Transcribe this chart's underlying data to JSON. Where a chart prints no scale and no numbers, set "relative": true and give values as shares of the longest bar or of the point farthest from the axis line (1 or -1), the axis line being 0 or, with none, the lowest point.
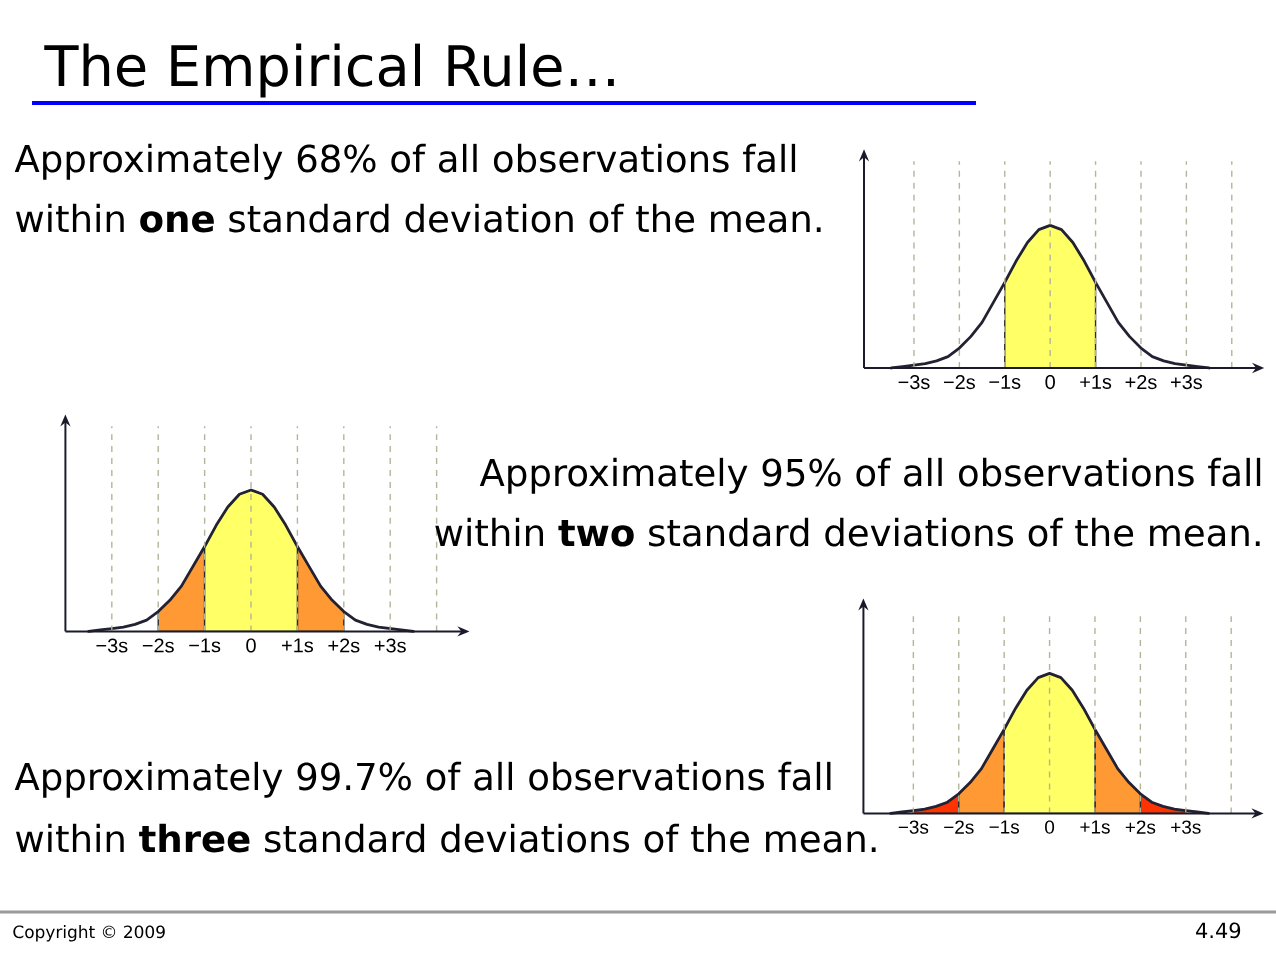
{
  "chart_data": [
    {
      "type": "line",
      "title": "The Empirical Rule…",
      "relative": true,
      "grid": "x",
      "tick_labels": "x",
      "x": [
        -3.5,
        -3.25,
        -3,
        -2.75,
        -2.5,
        -2.25,
        -2,
        -1.75,
        -1.5,
        -1.25,
        -1,
        -0.75,
        -0.5,
        -0.25,
        0,
        0.25,
        0.5,
        0.75,
        1,
        1.25,
        1.5,
        1.75,
        2,
        2.25,
        2.5,
        2.75,
        3,
        3.25,
        3.5
      ],
      "xlim": [
        -4.1,
        4.45
      ],
      "xticks": [
        {
          "value": -3,
          "label": "−3s"
        },
        {
          "value": -2,
          "label": "−2s"
        },
        {
          "value": -1,
          "label": "−1s"
        },
        0,
        {
          "value": 1,
          "label": "+1s"
        },
        {
          "value": 2,
          "label": "+2s"
        },
        {
          "value": 3,
          "label": "+3s"
        },
        {
          "value": 4,
          "label": null
        }
      ],
      "series": [
        {
          "type": "area",
          "color": "#ffff66",
          "x": [
            -1,
            -0.75,
            -0.5,
            -0.25,
            0,
            0.25,
            0.5,
            0.75,
            1
          ],
          "values": [
            0.6,
            0.75,
            0.88,
            0.97,
            1,
            0.97,
            0.88,
            0.75,
            0.6
          ]
        },
        {
          "color": "#222233",
          "values": [
            0,
            0.01,
            0.02,
            0.03,
            0.05,
            0.08,
            0.14,
            0.22,
            0.32,
            0.46,
            0.6,
            0.75,
            0.88,
            0.97,
            1,
            0.97,
            0.88,
            0.75,
            0.6,
            0.46,
            0.32,
            0.22,
            0.14,
            0.08,
            0.05,
            0.03,
            0.02,
            0.01,
            0
          ]
        }
      ],
      "annotations": [
        "Approximately 68% of all observations fall",
        "within **one** standard deviation of the mean."
      ]
    },
    {
      "type": "line",
      "relative": true,
      "grid": "x",
      "tick_labels": "x",
      "x": [
        -3.5,
        -3.25,
        -3,
        -2.75,
        -2.5,
        -2.25,
        -2,
        -1.75,
        -1.5,
        -1.25,
        -1,
        -0.75,
        -0.5,
        -0.25,
        0,
        0.25,
        0.5,
        0.75,
        1,
        1.25,
        1.5,
        1.75,
        2,
        2.25,
        2.5,
        2.75,
        3,
        3.25,
        3.5
      ],
      "xlim": [
        -4,
        4.45
      ],
      "xticks": [
        {
          "value": -3,
          "label": "−3s"
        },
        {
          "value": -2,
          "label": "−2s"
        },
        {
          "value": -1,
          "label": "−1s"
        },
        0,
        {
          "value": 1,
          "label": "+1s"
        },
        {
          "value": 2,
          "label": "+2s"
        },
        {
          "value": 3,
          "label": "+3s"
        },
        {
          "value": 4,
          "label": null
        }
      ],
      "series": [
        {
          "type": "area",
          "color": "#ff9933",
          "x": [
            -2,
            -1.75,
            -1.5,
            -1.25,
            -1
          ],
          "values": [
            0.14,
            0.22,
            0.32,
            0.46,
            0.6
          ]
        },
        {
          "type": "area",
          "color": "#ff9933",
          "x": [
            1,
            1.25,
            1.5,
            1.75,
            2
          ],
          "values": [
            0.6,
            0.46,
            0.32,
            0.22,
            0.14
          ]
        },
        {
          "type": "area",
          "color": "#ffff66",
          "x": [
            -1,
            -0.75,
            -0.5,
            -0.25,
            0,
            0.25,
            0.5,
            0.75,
            1
          ],
          "values": [
            0.6,
            0.75,
            0.88,
            0.97,
            1,
            0.97,
            0.88,
            0.75,
            0.6
          ]
        },
        {
          "color": "#222233",
          "values": [
            0,
            0.01,
            0.02,
            0.03,
            0.05,
            0.08,
            0.14,
            0.22,
            0.32,
            0.46,
            0.6,
            0.75,
            0.88,
            0.97,
            1,
            0.97,
            0.88,
            0.75,
            0.6,
            0.46,
            0.32,
            0.22,
            0.14,
            0.08,
            0.05,
            0.03,
            0.02,
            0.01,
            0
          ]
        }
      ],
      "annotations": [
        "Approximately 95% of all observations fall",
        "within **two** standard deviations of the mean."
      ]
    },
    {
      "type": "line",
      "relative": true,
      "grid": "x",
      "tick_labels": "x",
      "x": [
        -3.5,
        -3.25,
        -3,
        -2.75,
        -2.5,
        -2.25,
        -2,
        -1.75,
        -1.5,
        -1.25,
        -1,
        -0.75,
        -0.5,
        -0.25,
        0,
        0.25,
        0.5,
        0.75,
        1,
        1.25,
        1.5,
        1.75,
        2,
        2.25,
        2.5,
        2.75,
        3,
        3.25,
        3.5
      ],
      "xlim": [
        -4.1,
        4.45
      ],
      "xticks": [
        {
          "value": -3,
          "label": "−3s"
        },
        {
          "value": -2,
          "label": "−2s"
        },
        {
          "value": -1,
          "label": "−1s"
        },
        0,
        {
          "value": 1,
          "label": "+1s"
        },
        {
          "value": 2,
          "label": "+2s"
        },
        {
          "value": 3,
          "label": "+3s"
        },
        {
          "value": 4,
          "label": null
        }
      ],
      "series": [
        {
          "type": "area",
          "color": "#ff3300",
          "x": [
            -3,
            -2.75,
            -2.5,
            -2.25,
            -2
          ],
          "values": [
            0.02,
            0.03,
            0.05,
            0.08,
            0.14
          ]
        },
        {
          "type": "area",
          "color": "#ff3300",
          "x": [
            2,
            2.25,
            2.5,
            2.75,
            3
          ],
          "values": [
            0.14,
            0.08,
            0.05,
            0.03,
            0.02
          ]
        },
        {
          "type": "area",
          "color": "#ff9933",
          "x": [
            -2,
            -1.75,
            -1.5,
            -1.25,
            -1
          ],
          "values": [
            0.14,
            0.22,
            0.32,
            0.46,
            0.6
          ]
        },
        {
          "type": "area",
          "color": "#ff9933",
          "x": [
            1,
            1.25,
            1.5,
            1.75,
            2
          ],
          "values": [
            0.6,
            0.46,
            0.32,
            0.22,
            0.14
          ]
        },
        {
          "type": "area",
          "color": "#ffff66",
          "x": [
            -1,
            -0.75,
            -0.5,
            -0.25,
            0,
            0.25,
            0.5,
            0.75,
            1
          ],
          "values": [
            0.6,
            0.75,
            0.88,
            0.97,
            1,
            0.97,
            0.88,
            0.75,
            0.6
          ]
        },
        {
          "color": "#222233",
          "values": [
            0,
            0.01,
            0.02,
            0.03,
            0.05,
            0.08,
            0.14,
            0.22,
            0.32,
            0.46,
            0.6,
            0.75,
            0.88,
            0.97,
            1,
            0.97,
            0.88,
            0.75,
            0.6,
            0.46,
            0.32,
            0.22,
            0.14,
            0.08,
            0.05,
            0.03,
            0.02,
            0.01,
            0
          ]
        }
      ],
      "annotations": [
        "Approximately 99.7% of all observations fall",
        "within **three** standard deviations of the mean.",
        "Copyright © 2009",
        "4.49"
      ]
    }
  ]
}
